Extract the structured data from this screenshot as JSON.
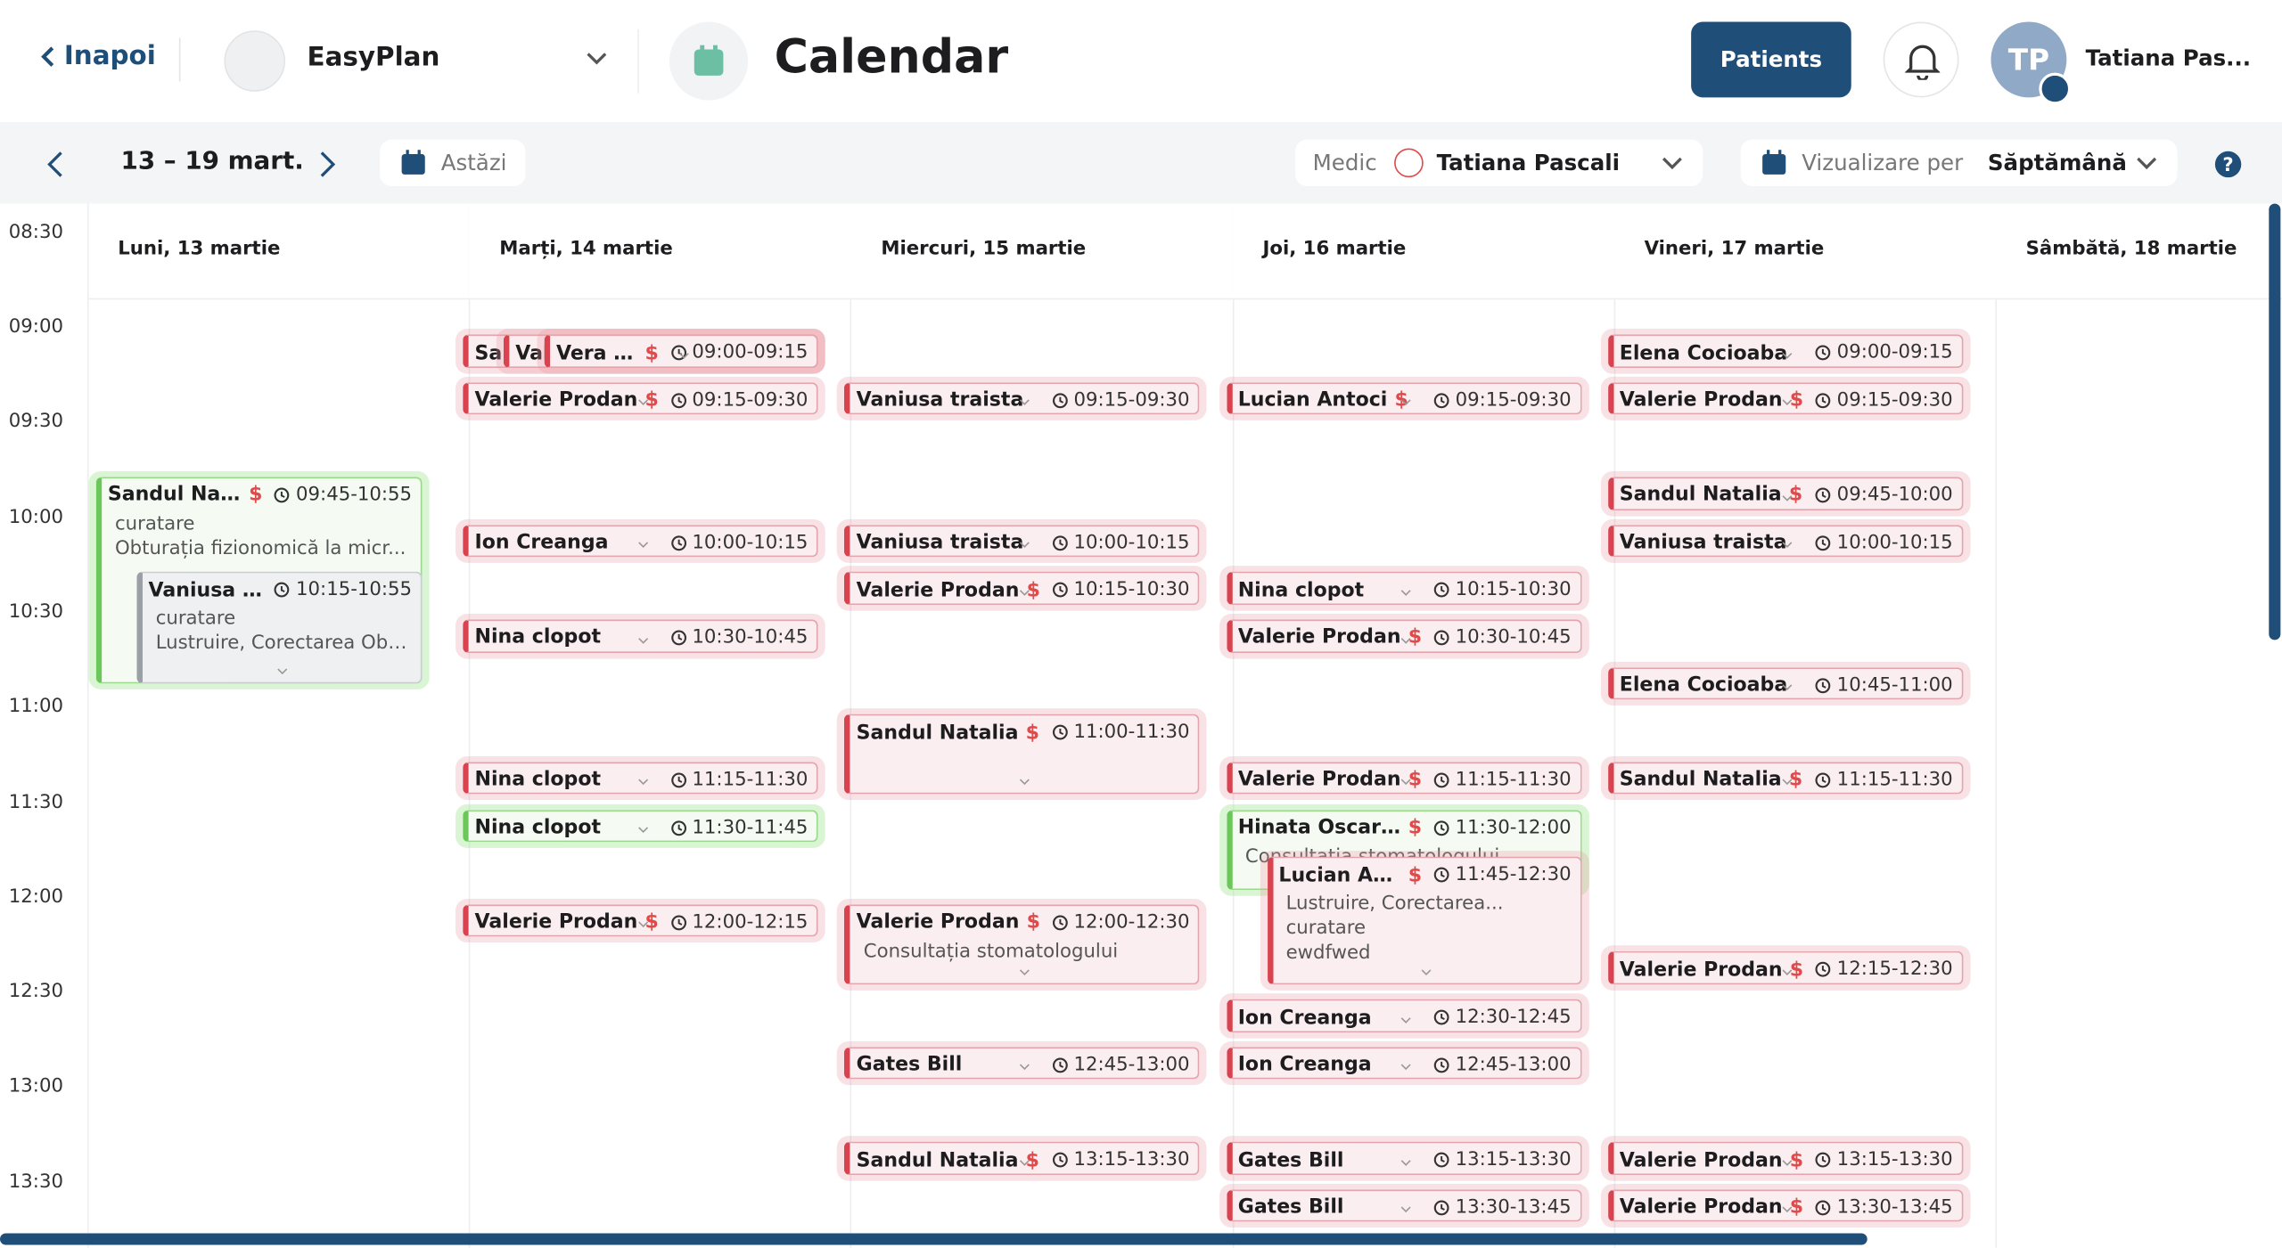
{
  "nav": {
    "back": "Inapoi",
    "clinic": "EasyPlan",
    "title": "Calendar",
    "patients_button": "Patients",
    "avatar_initials": "TP",
    "user_name": "Tatiana Pas..."
  },
  "toolbar": {
    "range": "13 – 19 mart.",
    "today": "Astăzi",
    "doctor_label": "Medic",
    "doctor": "Tatiana Pascali",
    "view_label": "Vizualizare per",
    "view": "Săptămână"
  },
  "times": [
    "08:30",
    "09:00",
    "09:30",
    "10:00",
    "10:30",
    "11:00",
    "11:30",
    "12:00",
    "12:30",
    "13:00",
    "13:30"
  ],
  "days": [
    {
      "title": "Luni, 13 martie",
      "events": [
        {
          "name": "Sandul Natalia",
          "badge": "$",
          "time": "09:45-10:55",
          "color": "green",
          "lines": [
            "curatare",
            "Obturația fizionomică la micr..."
          ]
        },
        {
          "name": "Vaniusa trai...",
          "time": "10:15-10:55",
          "color": "gray",
          "lines": [
            "curatare",
            "Lustruire, Corectarea Obt..."
          ]
        }
      ]
    },
    {
      "title": "Marți, 14 martie",
      "events": [
        {
          "name": "Sandul Natalia",
          "badge": "$",
          "time": "09:00-09:15",
          "color": "red"
        },
        {
          "name": "Valerie Prodan",
          "badge": "$",
          "time": "09:00-09:15",
          "color": "red"
        },
        {
          "name": "Vera Pas...",
          "badge": "$",
          "time": "09:00-09:15",
          "color": "red"
        },
        {
          "name": "Valerie Prodan",
          "badge": "$",
          "time": "09:15-09:30",
          "color": "red"
        },
        {
          "name": "Ion Creanga",
          "time": "10:00-10:15",
          "color": "red"
        },
        {
          "name": "Nina clopot",
          "time": "10:30-10:45",
          "color": "red"
        },
        {
          "name": "Nina clopot",
          "time": "11:15-11:30",
          "color": "red"
        },
        {
          "name": "Nina clopot",
          "time": "11:30-11:45",
          "color": "green"
        },
        {
          "name": "Valerie Prodan",
          "badge": "$",
          "time": "12:00-12:15",
          "color": "red"
        }
      ]
    },
    {
      "title": "Miercuri, 15 martie",
      "events": [
        {
          "name": "Vaniusa traista",
          "time": "09:15-09:30",
          "color": "red"
        },
        {
          "name": "Vaniusa traista",
          "time": "10:00-10:15",
          "color": "red"
        },
        {
          "name": "Valerie Prodan",
          "badge": "$",
          "time": "10:15-10:30",
          "color": "red"
        },
        {
          "name": "Sandul Natalia",
          "badge": "$",
          "time": "11:00-11:30",
          "color": "red"
        },
        {
          "name": "Valerie Prodan",
          "badge": "$",
          "time": "12:00-12:30",
          "color": "red",
          "lines": [
            "Consultația stomatologului"
          ]
        },
        {
          "name": "Gates Bill",
          "time": "12:45-13:00",
          "color": "red"
        },
        {
          "name": "Sandul Natalia",
          "badge": "$",
          "time": "13:15-13:30",
          "color": "red"
        }
      ]
    },
    {
      "title": "Joi, 16 martie",
      "events": [
        {
          "name": "Lucian Antoci",
          "badge": "$",
          "time": "09:15-09:30",
          "color": "red"
        },
        {
          "name": "Nina clopot",
          "time": "10:15-10:30",
          "color": "red"
        },
        {
          "name": "Valerie Prodan",
          "badge": "$",
          "time": "10:30-10:45",
          "color": "red"
        },
        {
          "name": "Valerie Prodan",
          "badge": "$",
          "time": "11:15-11:30",
          "color": "red"
        },
        {
          "name": "Hinata Oscar ...",
          "badge": "$",
          "time": "11:30-12:00",
          "color": "green",
          "lines": [
            "Consultația stomatologului"
          ]
        },
        {
          "name": "Lucian Antoci",
          "badge": "$",
          "time": "11:45-12:30",
          "color": "red",
          "lines": [
            "Lustruire, Corectarea...",
            "curatare",
            "ewdfwed"
          ]
        },
        {
          "name": "Ion Creanga",
          "time": "12:30-12:45",
          "color": "red"
        },
        {
          "name": "Ion Creanga",
          "time": "12:45-13:00",
          "color": "red"
        },
        {
          "name": "Gates Bill",
          "time": "13:15-13:30",
          "color": "red"
        },
        {
          "name": "Gates Bill",
          "time": "13:30-13:45",
          "color": "red"
        }
      ]
    },
    {
      "title": "Vineri, 17 martie",
      "events": [
        {
          "name": "Elena Cocioaba",
          "time": "09:00-09:15",
          "color": "red"
        },
        {
          "name": "Valerie Prodan",
          "badge": "$",
          "time": "09:15-09:30",
          "color": "red"
        },
        {
          "name": "Sandul Natalia",
          "badge": "$",
          "time": "09:45-10:00",
          "color": "red"
        },
        {
          "name": "Vaniusa traista",
          "time": "10:00-10:15",
          "color": "red"
        },
        {
          "name": "Elena Cocioaba",
          "time": "10:45-11:00",
          "color": "red"
        },
        {
          "name": "Sandul Natalia",
          "badge": "$",
          "time": "11:15-11:30",
          "color": "red"
        },
        {
          "name": "Valerie Prodan",
          "badge": "$",
          "time": "12:15-12:30",
          "color": "red"
        },
        {
          "name": "Valerie Prodan",
          "badge": "$",
          "time": "13:15-13:30",
          "color": "red"
        },
        {
          "name": "Valerie Prodan",
          "badge": "$",
          "time": "13:30-13:45",
          "color": "red"
        }
      ]
    },
    {
      "title": "Sâmbătă, 18 martie",
      "events": []
    }
  ]
}
